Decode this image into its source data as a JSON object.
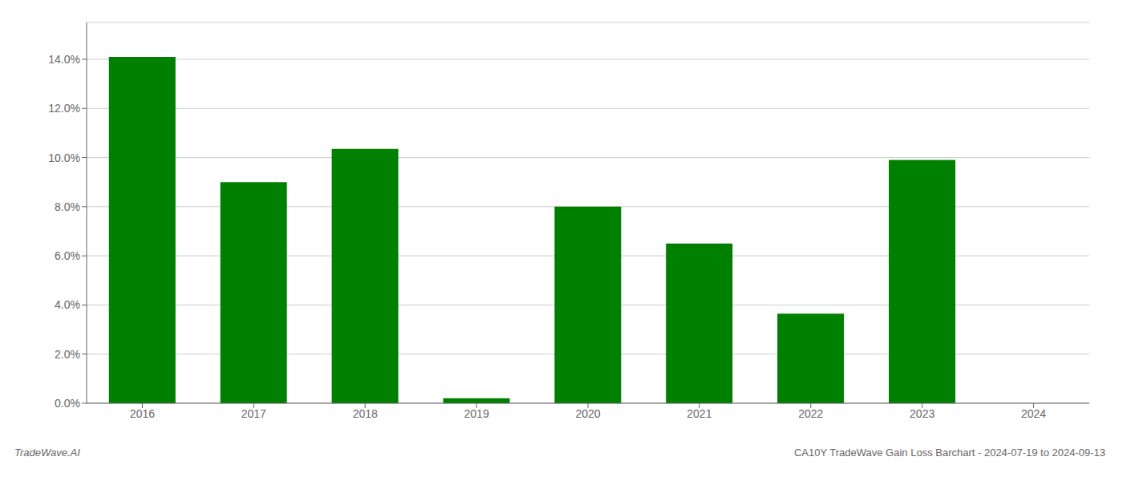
{
  "chart_data": {
    "type": "bar",
    "categories": [
      "2016",
      "2017",
      "2018",
      "2019",
      "2020",
      "2021",
      "2022",
      "2023",
      "2024"
    ],
    "values": [
      0.141,
      0.09,
      0.1035,
      0.002,
      0.08,
      0.065,
      0.0365,
      0.099,
      0.0
    ],
    "color": "#008000",
    "ylim": [
      0.0,
      0.155
    ],
    "yticks": [
      {
        "value": 0.0,
        "label": "0.0%"
      },
      {
        "value": 0.02,
        "label": "2.0%"
      },
      {
        "value": 0.04,
        "label": "4.0%"
      },
      {
        "value": 0.06,
        "label": "6.0%"
      },
      {
        "value": 0.08,
        "label": "8.0%"
      },
      {
        "value": 0.1,
        "label": "10.0%"
      },
      {
        "value": 0.12,
        "label": "12.0%"
      },
      {
        "value": 0.14,
        "label": "14.0%"
      }
    ],
    "grid": true,
    "annotations": [
      "TradeWave.AI",
      "CA10Y TradeWave Gain Loss Barchart - 2024-07-19 to 2024-09-13"
    ]
  }
}
